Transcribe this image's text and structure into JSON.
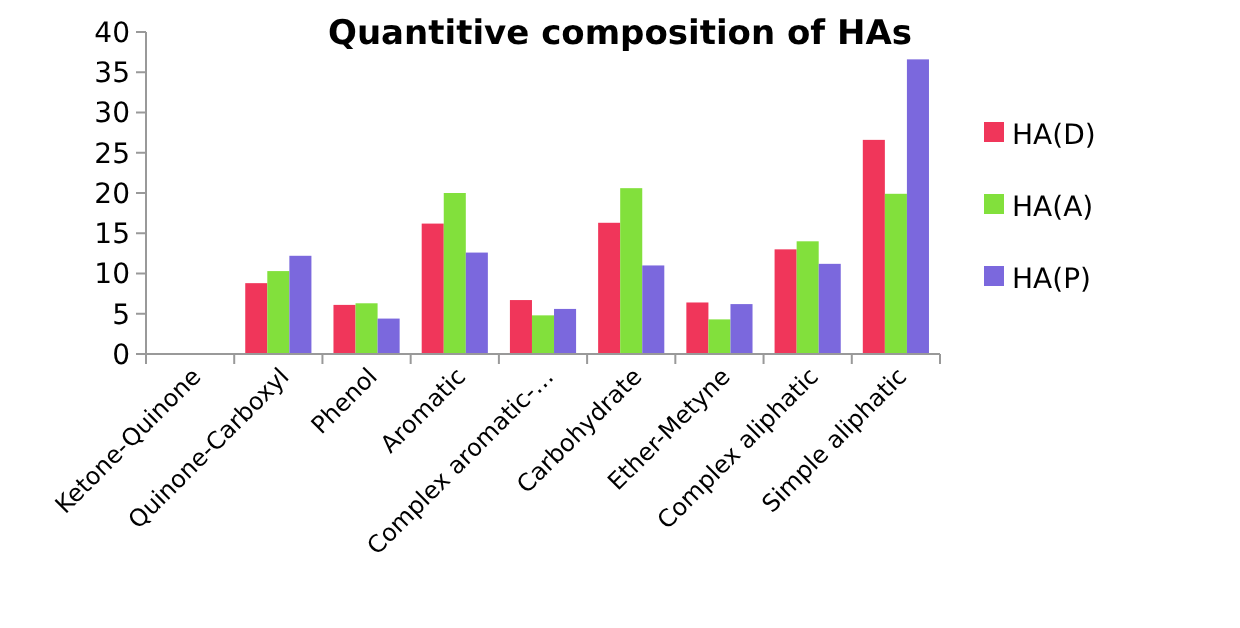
{
  "chart_data": {
    "type": "bar",
    "title": "Quantitive composition of HAs",
    "categories": [
      "Ketone-Quinone",
      "Quinone-Carboxyl",
      "Phenol",
      "Aromatic",
      "Complex aromatic-…",
      "Carbohydrate",
      "Ether-Metyne",
      "Complex aliphatic",
      "Simple aliphatic"
    ],
    "series": [
      {
        "name": "HA(D)",
        "color": "#f0365a",
        "values": [
          0,
          8.8,
          6.1,
          16.2,
          6.7,
          16.3,
          6.4,
          13,
          26.6
        ]
      },
      {
        "name": "HA(A)",
        "color": "#82e03c",
        "values": [
          0,
          10.3,
          6.3,
          20,
          4.8,
          20.6,
          4.3,
          14,
          19.9
        ]
      },
      {
        "name": "HA(P)",
        "color": "#7b68dd",
        "values": [
          0,
          12.2,
          4.4,
          12.6,
          5.6,
          11,
          6.2,
          11.2,
          36.6
        ]
      }
    ],
    "ylim": [
      0,
      40
    ],
    "yticks": [
      0,
      5,
      10,
      15,
      20,
      25,
      30,
      35,
      40
    ],
    "grid": false,
    "legend": "right"
  }
}
